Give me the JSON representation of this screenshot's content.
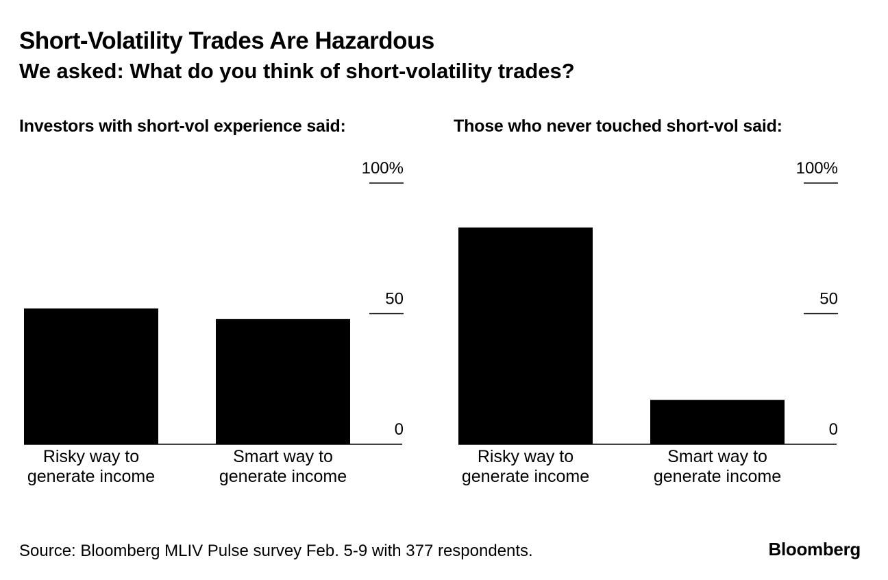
{
  "header": {
    "title": "Short-Volatility Trades Are Hazardous",
    "subtitle": "We asked: What do you think of short-volatility trades?"
  },
  "chart_data": [
    {
      "type": "bar",
      "title": "Investors with short-vol experience said:",
      "categories": [
        "Risky way to generate income",
        "Smart way to generate income"
      ],
      "category_lines": [
        [
          "Risky way to",
          "generate income"
        ],
        [
          "Smart way to",
          "generate income"
        ]
      ],
      "values": [
        52,
        48
      ],
      "ylim": [
        0,
        100
      ],
      "yticks": [
        0,
        50,
        100
      ],
      "ytick_labels": [
        "0",
        "50",
        "100%"
      ],
      "color": "#000000"
    },
    {
      "type": "bar",
      "title": "Those who never touched short-vol said:",
      "categories": [
        "Risky way to generate income",
        "Smart way to generate income"
      ],
      "category_lines": [
        [
          "Risky way to",
          "generate income"
        ],
        [
          "Smart way to",
          "generate income"
        ]
      ],
      "values": [
        83,
        17
      ],
      "ylim": [
        0,
        100
      ],
      "yticks": [
        0,
        50,
        100
      ],
      "ytick_labels": [
        "0",
        "50",
        "100%"
      ],
      "color": "#000000"
    }
  ],
  "footer": {
    "source": "Source: Bloomberg MLIV Pulse survey Feb. 5-9 with 377 respondents.",
    "brand": "Bloomberg"
  }
}
